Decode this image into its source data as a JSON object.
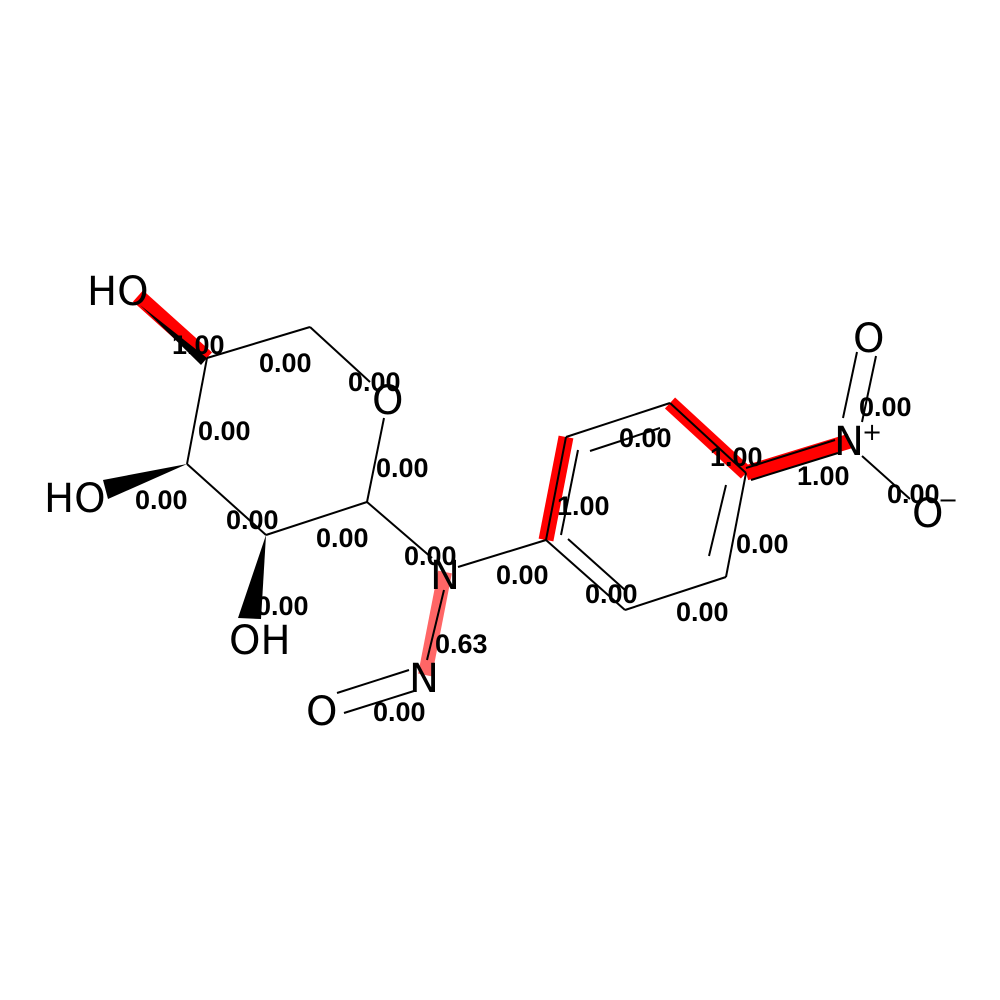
{
  "colors": {
    "highlight_strong": "#ff0000",
    "highlight_mid": "#ff6666",
    "bond": "#000000",
    "background": "#ffffff"
  },
  "atoms": {
    "ho_top": "HO",
    "o_ring": "O",
    "ho_left": "HO",
    "oh_bottom": "OH",
    "n_amine": "N",
    "n_nitroso": "N",
    "o_nitroso": "O",
    "n_nitro": "N",
    "n_nitro_charge": "+",
    "o_nitro_top": "O",
    "o_nitro_right": "O",
    "o_nitro_right_charge": "−"
  },
  "weights": {
    "b_ho_top": "1.00",
    "b_c5_c6": "0.00",
    "b_c6_o": "0.00",
    "b_c5_c4": "0.00",
    "b_o_c1": "0.00",
    "b_c4_oh": "0.00",
    "b_c4_c3": "0.00",
    "b_c3_c2": "0.00",
    "b_c3_oh": "0.00",
    "b_c1_n": "0.00",
    "b_n_nn": "0.63",
    "b_nn_o": "0.00",
    "b_n_ar": "0.00",
    "b_ar_1": "1.00",
    "b_ar_top": "0.00",
    "b_ar_nitro_c": "1.00",
    "b_c_nitro": "1.00",
    "b_no_top": "0.00",
    "b_no_right": "0.00",
    "b_ar_right": "0.00",
    "b_ar_bottom_left": "0.00",
    "b_ar_bottom_right": "0.00"
  }
}
